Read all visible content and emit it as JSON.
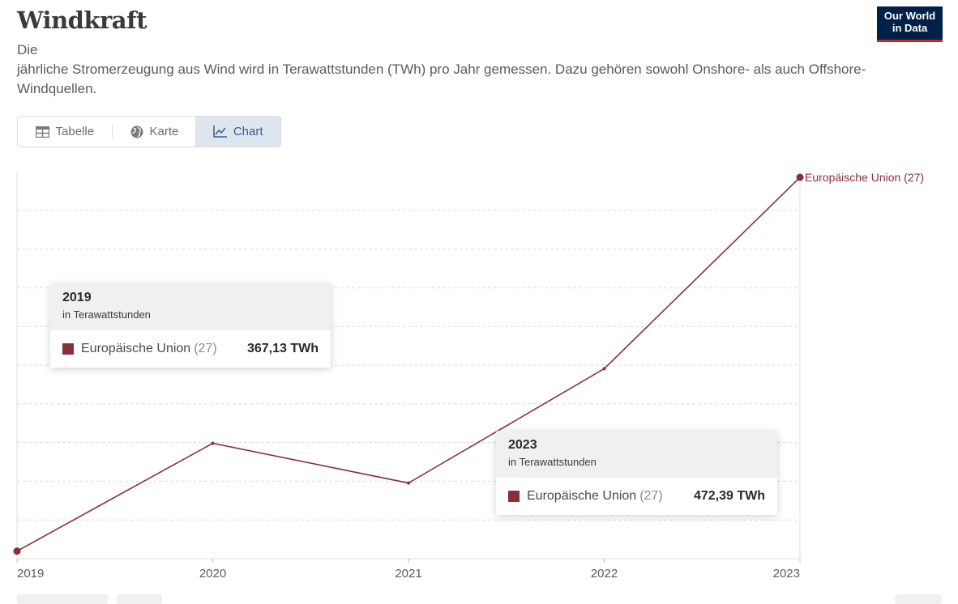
{
  "title": "Windkraft",
  "subtitle": "Die\njährliche Stromerzeugung aus Wind wird in Terawattstunden (TWh) pro Jahr gemessen. Dazu gehören sowohl Onshore- als auch Offshore-Windquellen.",
  "logo": {
    "line1": "Our World",
    "line2": "in Data"
  },
  "tabs": [
    {
      "label": "Tabelle",
      "icon": "table-icon",
      "active": false
    },
    {
      "label": "Karte",
      "icon": "globe-icon",
      "active": false
    },
    {
      "label": "Chart",
      "icon": "line-chart-icon",
      "active": true
    }
  ],
  "colors": {
    "series": "#883039",
    "grid": "#dddddd",
    "active_tab_bg": "#dde5ef",
    "active_tab_text": "#3b5f8f"
  },
  "chart_data": {
    "type": "line",
    "x": [
      2019,
      2020,
      2021,
      2022,
      2023
    ],
    "x_tick_labels": [
      "2019",
      "2020",
      "2021",
      "2022",
      "2023"
    ],
    "series": [
      {
        "name": "Europäische Union (27)",
        "values": [
          367.13,
          397.5,
          386.3,
          418.5,
          472.39
        ]
      }
    ],
    "ylim": [
      365,
      474
    ],
    "y_grid_lines": 10,
    "grid": true,
    "legend": "end-of-line label"
  },
  "tooltips": [
    {
      "year": "2019",
      "unit": "in Terawattstunden",
      "name": "Europäische Union",
      "code": "(27)",
      "value": "367,13 TWh"
    },
    {
      "year": "2023",
      "unit": "in Terawattstunden",
      "name": "Europäische Union",
      "code": "(27)",
      "value": "472,39 TWh"
    }
  ]
}
